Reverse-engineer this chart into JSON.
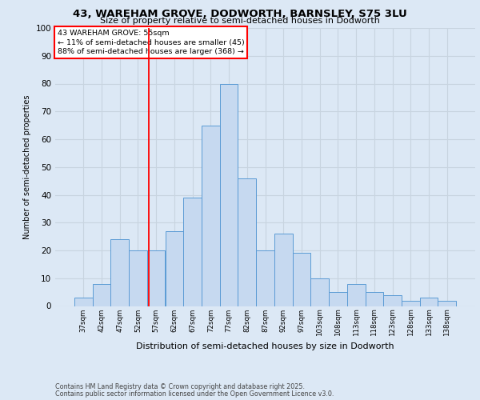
{
  "title_line1": "43, WAREHAM GROVE, DODWORTH, BARNSLEY, S75 3LU",
  "title_line2": "Size of property relative to semi-detached houses in Dodworth",
  "xlabel": "Distribution of semi-detached houses by size in Dodworth",
  "ylabel": "Number of semi-detached properties",
  "categories": [
    "37sqm",
    "42sqm",
    "47sqm",
    "52sqm",
    "57sqm",
    "62sqm",
    "67sqm",
    "72sqm",
    "77sqm",
    "82sqm",
    "87sqm",
    "92sqm",
    "97sqm",
    "103sqm",
    "108sqm",
    "113sqm",
    "118sqm",
    "123sqm",
    "128sqm",
    "133sqm",
    "138sqm"
  ],
  "values": [
    3,
    8,
    24,
    20,
    20,
    27,
    39,
    65,
    80,
    46,
    20,
    26,
    19,
    10,
    5,
    8,
    5,
    4,
    2,
    3,
    2
  ],
  "bar_color": "#c6d9f0",
  "bar_edge_color": "#5b9bd5",
  "vline_color": "red",
  "annotation_title": "43 WAREHAM GROVE: 55sqm",
  "annotation_line1": "← 11% of semi-detached houses are smaller (45)",
  "annotation_line2": "88% of semi-detached houses are larger (368) →",
  "annotation_box_color": "red",
  "ylim": [
    0,
    100
  ],
  "yticks": [
    0,
    10,
    20,
    30,
    40,
    50,
    60,
    70,
    80,
    90,
    100
  ],
  "grid_color": "#c8d4e0",
  "background_color": "#dce8f5",
  "footer_line1": "Contains HM Land Registry data © Crown copyright and database right 2025.",
  "footer_line2": "Contains public sector information licensed under the Open Government Licence v3.0."
}
